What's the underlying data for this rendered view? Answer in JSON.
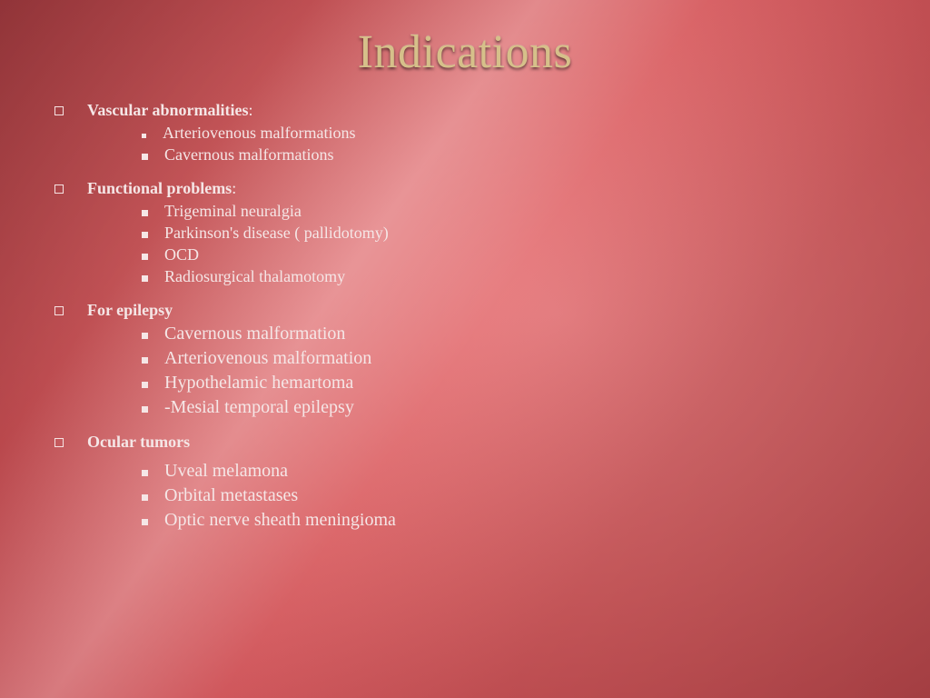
{
  "title": "Indications",
  "sections": [
    {
      "heading": "Vascular abnormalities",
      "colon": true,
      "heading_size": "small",
      "items": [
        {
          "text": " Arteriovenous malformations",
          "bullet_size": "tiny",
          "font_size": "small"
        },
        {
          "text": "Cavernous malformations",
          "bullet_size": "normal",
          "font_size": "small"
        }
      ]
    },
    {
      "heading": "Functional problems",
      "colon": true,
      "heading_size": "small",
      "items": [
        {
          "text": "Trigeminal neuralgia",
          "bullet_size": "normal",
          "font_size": "small"
        },
        {
          "text": "Parkinson's disease ( pallidotomy)",
          "bullet_size": "normal",
          "font_size": "small"
        },
        {
          "text": "OCD",
          "bullet_size": "normal",
          "font_size": "small"
        },
        {
          "text": "Radiosurgical thalamotomy",
          "bullet_size": "normal",
          "font_size": "small"
        }
      ]
    },
    {
      "heading": "For epilepsy",
      "colon": false,
      "heading_size": "small",
      "items": [
        {
          "text": "Cavernous malformation",
          "bullet_size": "normal",
          "font_size": "normal"
        },
        {
          "text": "Arteriovenous malformation",
          "bullet_size": "normal",
          "font_size": "normal"
        },
        {
          "text": "Hypothelamic hemartoma",
          "bullet_size": "normal",
          "font_size": "normal"
        },
        {
          "text": "-Mesial temporal epilepsy",
          "bullet_size": "normal",
          "font_size": "normal"
        }
      ]
    },
    {
      "heading": "Ocular tumors",
      "colon": false,
      "heading_size": "small",
      "gap_before_items": true,
      "items": [
        {
          "text": "Uveal melamona",
          "bullet_size": "normal",
          "font_size": "normal"
        },
        {
          "text": "Orbital metastases",
          "bullet_size": "normal",
          "font_size": "normal"
        },
        {
          "text": "Optic nerve sheath meningioma",
          "bullet_size": "normal",
          "font_size": "normal"
        }
      ]
    }
  ],
  "colors": {
    "title": "#d6c08a",
    "text": "#f5e6e6",
    "bg_main": "#d95f62"
  }
}
